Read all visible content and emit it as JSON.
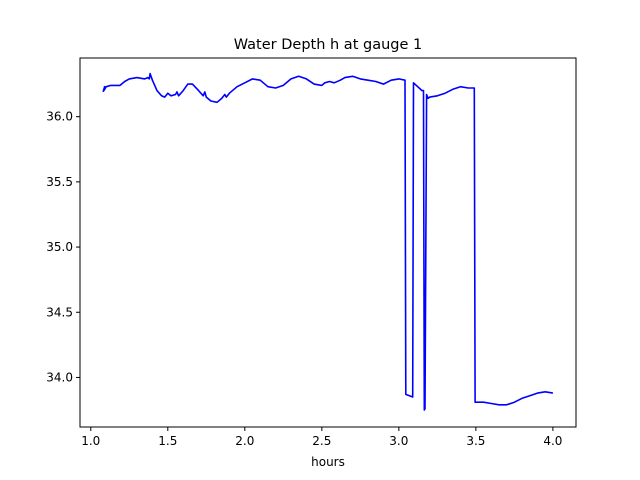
{
  "chart_data": {
    "type": "line",
    "title": "Water Depth h at gauge 1",
    "xlabel": "hours",
    "ylabel": "",
    "xlim": [
      0.93,
      4.15
    ],
    "ylim": [
      33.62,
      36.45
    ],
    "xticks": [
      1.0,
      1.5,
      2.0,
      2.5,
      3.0,
      3.5,
      4.0
    ],
    "xtick_labels": [
      "1.0",
      "1.5",
      "2.0",
      "2.5",
      "3.0",
      "3.5",
      "4.0"
    ],
    "yticks": [
      34.0,
      34.5,
      35.0,
      35.5,
      36.0
    ],
    "ytick_labels": [
      "34.0",
      "34.5",
      "35.0",
      "35.5",
      "36.0"
    ],
    "grid": false,
    "series": [
      {
        "color": "#0000ff",
        "x": [
          1.08,
          1.09,
          1.085,
          1.1,
          1.13,
          1.16,
          1.19,
          1.22,
          1.25,
          1.3,
          1.35,
          1.37,
          1.38,
          1.385,
          1.4,
          1.43,
          1.46,
          1.48,
          1.5,
          1.52,
          1.55,
          1.56,
          1.57,
          1.6,
          1.63,
          1.66,
          1.7,
          1.73,
          1.74,
          1.75,
          1.78,
          1.82,
          1.85,
          1.87,
          1.88,
          1.9,
          1.95,
          2.0,
          2.05,
          2.1,
          2.15,
          2.2,
          2.25,
          2.3,
          2.35,
          2.4,
          2.45,
          2.5,
          2.52,
          2.55,
          2.58,
          2.62,
          2.65,
          2.7,
          2.75,
          2.8,
          2.85,
          2.9,
          2.95,
          3.0,
          3.04,
          3.045,
          3.09,
          3.095,
          3.15,
          3.16,
          3.165,
          3.17,
          3.18,
          3.19,
          3.2,
          3.25,
          3.3,
          3.35,
          3.4,
          3.45,
          3.49,
          3.495,
          3.55,
          3.6,
          3.65,
          3.7,
          3.75,
          3.8,
          3.85,
          3.9,
          3.95,
          4.0
        ],
        "y": [
          36.19,
          36.23,
          36.2,
          36.23,
          36.24,
          36.24,
          36.24,
          36.27,
          36.29,
          36.3,
          36.29,
          36.3,
          36.29,
          36.33,
          36.28,
          36.2,
          36.16,
          36.15,
          36.18,
          36.16,
          36.17,
          36.19,
          36.16,
          36.2,
          36.25,
          36.25,
          36.2,
          36.16,
          36.19,
          36.15,
          36.12,
          36.11,
          36.14,
          36.17,
          36.15,
          36.18,
          36.23,
          36.26,
          36.29,
          36.28,
          36.23,
          36.22,
          36.24,
          36.29,
          36.31,
          36.29,
          36.25,
          36.24,
          36.26,
          36.27,
          36.26,
          36.28,
          36.3,
          36.31,
          36.29,
          36.28,
          36.27,
          36.25,
          36.28,
          36.29,
          36.28,
          33.87,
          33.85,
          36.26,
          36.2,
          36.2,
          33.75,
          33.76,
          36.17,
          36.14,
          36.15,
          36.16,
          36.18,
          36.21,
          36.23,
          36.22,
          36.22,
          33.81,
          33.81,
          33.8,
          33.79,
          33.79,
          33.81,
          33.84,
          33.86,
          33.88,
          33.89,
          33.88
        ]
      }
    ]
  }
}
